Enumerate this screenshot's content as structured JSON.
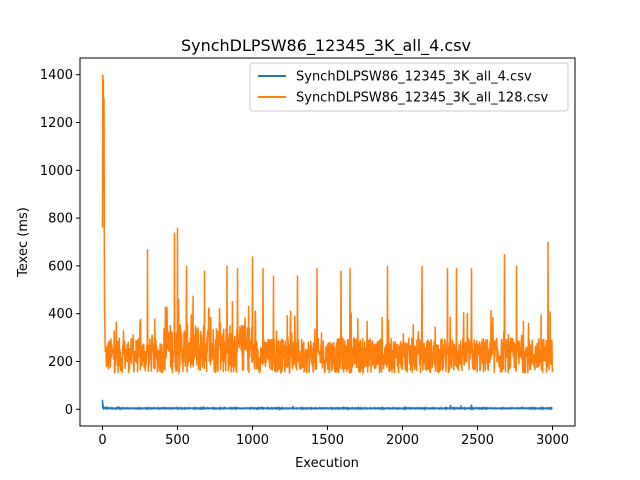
{
  "chart_data": {
    "type": "line",
    "title": "SynchDLPSW86_12345_3K_all_4.csv",
    "xlabel": "Execution",
    "ylabel": "Texec (ms)",
    "xlim": [
      -150,
      3150
    ],
    "ylim": [
      -70,
      1470
    ],
    "x_ticks": [
      0,
      500,
      1000,
      1500,
      2000,
      2500,
      3000
    ],
    "x_tick_labels": [
      "0",
      "500",
      "1000",
      "1500",
      "2000",
      "2500",
      "3000"
    ],
    "y_ticks": [
      0,
      200,
      400,
      600,
      800,
      1000,
      1200,
      1400
    ],
    "y_tick_labels": [
      "0",
      "200",
      "400",
      "600",
      "800",
      "1000",
      "1200",
      "1400"
    ],
    "grid": false,
    "legend_position": "top-right",
    "series": [
      {
        "name": "SynchDLPSW86_12345_3K_all_4.csv",
        "color": "#1f77b4",
        "baseline": 4,
        "x_range": [
          0,
          3000
        ],
        "spikes": [
          [
            0,
            40
          ],
          [
            3,
            25
          ],
          [
            10,
            8
          ],
          [
            100,
            12
          ],
          [
            120,
            8
          ],
          [
            1165,
            10
          ],
          [
            1220,
            8
          ],
          [
            1270,
            14
          ],
          [
            1590,
            8
          ],
          [
            2320,
            18
          ],
          [
            2390,
            16
          ],
          [
            2460,
            20
          ],
          [
            2800,
            12
          ]
        ]
      },
      {
        "name": "SynchDLPSW86_12345_3K_all_128.csv",
        "color": "#ff7f0e",
        "x_range": [
          0,
          3000
        ],
        "band_low": 150,
        "band_high": 300,
        "startup": [
          [
            0,
            760
          ],
          [
            2,
            1400
          ],
          [
            4,
            900
          ],
          [
            6,
            1380
          ],
          [
            8,
            1000
          ],
          [
            10,
            1300
          ],
          [
            12,
            700
          ],
          [
            14,
            420
          ],
          [
            16,
            350
          ],
          [
            18,
            240
          ]
        ],
        "spikes": [
          [
            205,
            310
          ],
          [
            250,
            370
          ],
          [
            300,
            670
          ],
          [
            420,
            430
          ],
          [
            480,
            740
          ],
          [
            500,
            760
          ],
          [
            560,
            600
          ],
          [
            680,
            580
          ],
          [
            830,
            600
          ],
          [
            900,
            590
          ],
          [
            1000,
            640
          ],
          [
            1070,
            590
          ],
          [
            1140,
            560
          ],
          [
            1300,
            560
          ],
          [
            1430,
            590
          ],
          [
            1590,
            580
          ],
          [
            1650,
            590
          ],
          [
            1900,
            600
          ],
          [
            2130,
            600
          ],
          [
            2300,
            590
          ],
          [
            2360,
            590
          ],
          [
            2460,
            590
          ],
          [
            2680,
            650
          ],
          [
            2760,
            600
          ],
          [
            2970,
            700
          ]
        ]
      }
    ]
  }
}
